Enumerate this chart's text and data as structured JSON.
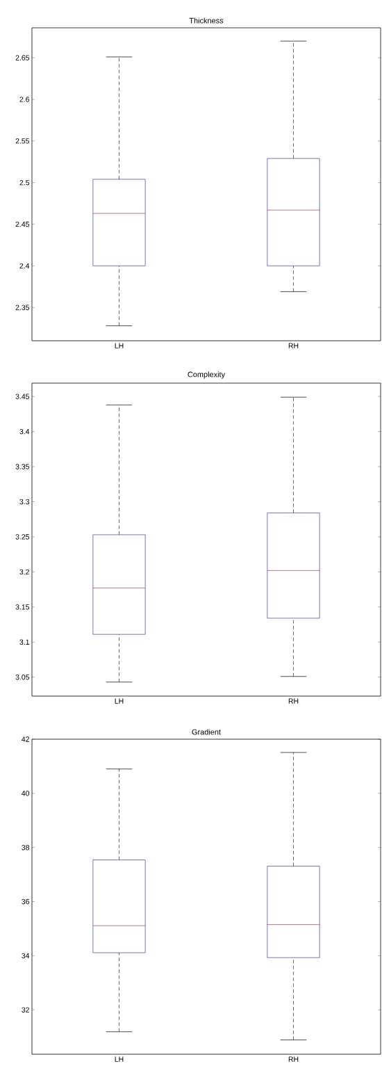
{
  "chart_data": [
    {
      "type": "box",
      "title": "Thickness",
      "categories": [
        "LH",
        "RH"
      ],
      "ylim": [
        2.31,
        2.686
      ],
      "yticks": [
        2.35,
        2.4,
        2.45,
        2.5,
        2.55,
        2.6,
        2.65
      ],
      "series": [
        {
          "color": "#1c1c78",
          "boxes": [
            {
              "low": 2.328,
              "q1": 2.4,
              "median": 2.463,
              "q3": 2.504,
              "high": 2.651
            },
            {
              "low": 2.369,
              "q1": 2.4,
              "median": 2.467,
              "q3": 2.529,
              "high": 2.67
            }
          ]
        }
      ]
    },
    {
      "type": "box",
      "title": "Complexity",
      "categories": [
        "LH",
        "RH"
      ],
      "ylim": [
        3.023,
        3.469
      ],
      "yticks": [
        3.05,
        3.1,
        3.15,
        3.2,
        3.25,
        3.3,
        3.35,
        3.4,
        3.45
      ],
      "series": [
        {
          "color": "#1c1c78",
          "boxes": [
            {
              "low": 3.043,
              "q1": 3.111,
              "median": 3.177,
              "q3": 3.253,
              "high": 3.438
            },
            {
              "low": 3.051,
              "q1": 3.134,
              "median": 3.202,
              "q3": 3.284,
              "high": 3.449
            }
          ]
        }
      ]
    },
    {
      "type": "box",
      "title": "Gradient",
      "categories": [
        "LH",
        "RH"
      ],
      "ylim": [
        30.36,
        42
      ],
      "yticks": [
        32,
        34,
        36,
        38,
        40,
        42
      ],
      "series": [
        {
          "color": "#1c1c78",
          "boxes": [
            {
              "low": 31.19,
              "q1": 34.11,
              "median": 35.11,
              "q3": 37.54,
              "high": 40.9
            },
            {
              "low": 30.89,
              "q1": 33.93,
              "median": 35.15,
              "q3": 37.31,
              "high": 41.51
            }
          ]
        }
      ]
    }
  ]
}
